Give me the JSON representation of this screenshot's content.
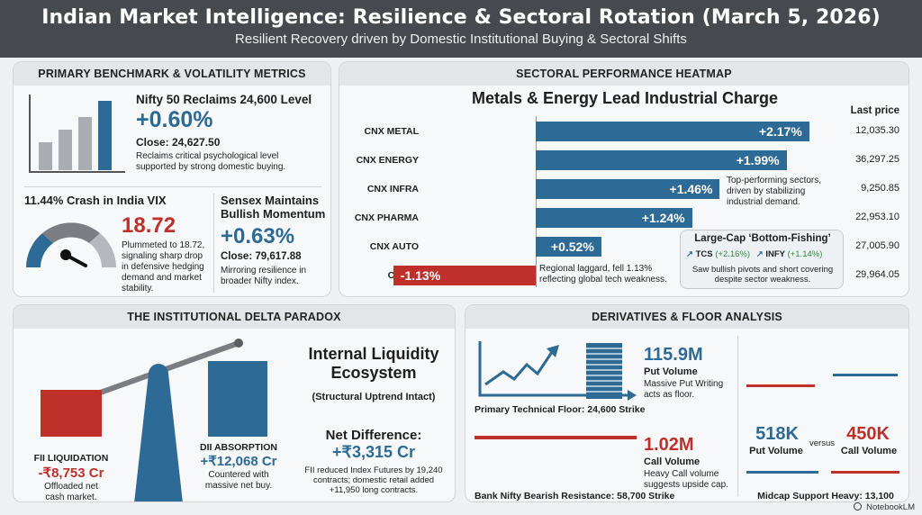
{
  "header": {
    "title": "Indian Market Intelligence: Resilience & Sectoral Rotation (March 5, 2026)",
    "subtitle": "Resilient Recovery driven by Domestic Institutional Buying & Sectoral Shifts"
  },
  "benchmark": {
    "title": "PRIMARY BENCHMARK & VOLATILITY METRICS",
    "nifty": {
      "heading": "Nifty 50 Reclaims 24,600 Level",
      "change": "+0.60%",
      "close": "Close: 24,627.50",
      "note": "Reclaims critical psychological level supported by strong domestic buying."
    },
    "vix": {
      "heading": "11.44% Crash in India VIX",
      "value": "18.72",
      "note": "Plummeted to 18.72, signaling sharp drop in defensive hedging demand and market stability."
    },
    "sensex": {
      "heading": "Sensex Maintains Bullish Momentum",
      "change": "+0.63%",
      "close": "Close: 79,617.88",
      "note": "Mirroring resilience in broader Nifty index."
    }
  },
  "heatmap": {
    "title": "SECTORAL PERFORMANCE HEATMAP",
    "subtitle": "Metals & Energy Lead Industrial Charge",
    "price_header": "Last price",
    "sectors": [
      {
        "name": "CNX METAL",
        "change": "+2.17%",
        "price": "12,035.30"
      },
      {
        "name": "CNX ENERGY",
        "change": "+1.99%",
        "price": "36,297.25"
      },
      {
        "name": "CNX INFRA",
        "change": "+1.46%",
        "price": "9,250.85"
      },
      {
        "name": "CNX PHARMA",
        "change": "+1.24%",
        "price": "22,953.10"
      },
      {
        "name": "CNX AUTO",
        "change": "+0.52%",
        "price": "27,005.90"
      },
      {
        "name": "CNX IT",
        "change": "-1.13%",
        "price": "29,964.05"
      }
    ],
    "chart_data": {
      "type": "bar",
      "categories": [
        "CNX METAL",
        "CNX ENERGY",
        "CNX INFRA",
        "CNX PHARMA",
        "CNX AUTO",
        "CNX IT"
      ],
      "values": [
        2.17,
        1.99,
        1.46,
        1.24,
        0.52,
        -1.13
      ],
      "title": "Metals & Energy Lead Industrial Charge",
      "xlabel": "",
      "ylabel": "",
      "xlim": [
        -1.3,
        2.4
      ]
    },
    "top_note": "Top-performing sectors, driven by stabilizing industrial demand.",
    "it_note": "Regional laggard, fell 1.13% reflecting global tech weakness.",
    "callout": {
      "title": "Large-Cap ‘Bottom-Fishing’",
      "tcs_name": "TCS",
      "tcs_change": "(+2.16%)",
      "infy_name": "INFY",
      "infy_change": "(+1.14%)",
      "note": "Saw bullish pivots and short covering despite sector weakness."
    }
  },
  "delta": {
    "title": "THE INSTITUTIONAL DELTA PARADOX",
    "fii_label": "FII LIQUIDATION",
    "fii_value": "-₹8,753 Cr",
    "fii_note": "Offloaded net cash market.",
    "dii_label": "DII ABSORPTION",
    "dii_value": "+₹12,068 Cr",
    "dii_note": "Countered with massive net buy.",
    "ecosystem_title": "Internal Liquidity Ecosystem",
    "ecosystem_sub": "(Structural Uptrend Intact)",
    "net_label": "Net Difference:",
    "net_value": "+₹3,315 Cr",
    "net_note": "FII reduced Index Futures by 19,240 contracts; domestic retail added +11,950 long contracts."
  },
  "derivatives": {
    "title": "DERIVATIVES & FLOOR ANALYSIS",
    "put_volume": "115.9M",
    "put_label": "Put Volume",
    "put_note": "Massive Put Writing acts as floor.",
    "floor": "Primary Technical Floor: 24,600 Strike",
    "call_volume": "1.02M",
    "call_label": "Call Volume",
    "call_note": "Heavy Call volume suggests upside cap.",
    "resistance": "Bank Nifty Bearish Resistance: 58,700 Strike",
    "midcap_put": "518K",
    "midcap_put_label": "Put Volume",
    "versus": "versus",
    "midcap_call": "450K",
    "midcap_call_label": "Call Volume",
    "midcap_support": "Midcap Support Heavy: 13,100"
  },
  "footer": {
    "brand": "NotebookLM"
  },
  "colors": {
    "blue": "#2d6a96",
    "red": "#c0302b",
    "green": "#2e8b3e"
  }
}
